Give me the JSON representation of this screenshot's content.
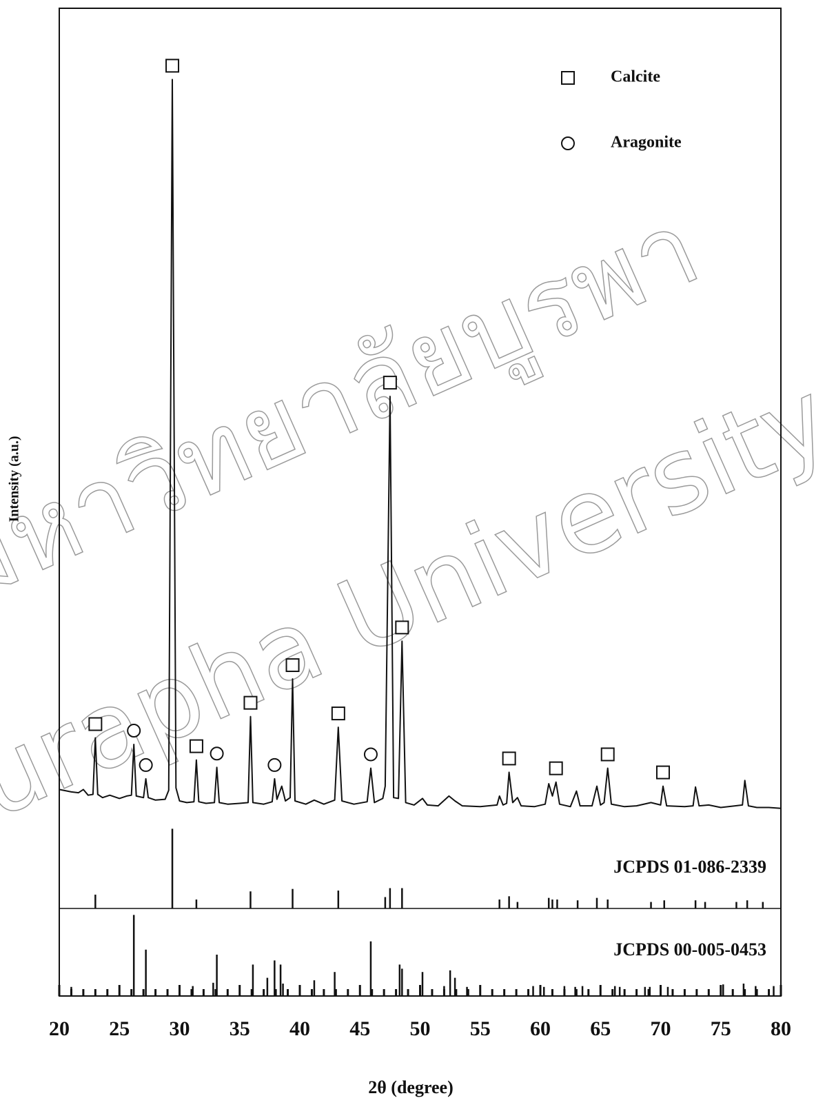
{
  "chart_data": {
    "type": "line",
    "xlabel": "2θ (degree)",
    "ylabel": "Intensity (a.u.)",
    "color": "#111111",
    "xlim": [
      20,
      80
    ],
    "xticks": [
      20,
      25,
      30,
      35,
      40,
      45,
      50,
      55,
      60,
      65,
      70,
      75,
      80
    ],
    "xminorticks": [
      21,
      22,
      23,
      24,
      26,
      27,
      28,
      29,
      31,
      32,
      33,
      34,
      36,
      37,
      38,
      39,
      41,
      42,
      43,
      44,
      46,
      47,
      48,
      49,
      51,
      52,
      53,
      54,
      56,
      57,
      58,
      59,
      61,
      62,
      63,
      64,
      66,
      67,
      68,
      69,
      71,
      72,
      73,
      74,
      76,
      77,
      78,
      79
    ],
    "ylim": [
      0,
      100
    ],
    "x": [
      20,
      21,
      21.6,
      22,
      22.4,
      22.8,
      23.0,
      23.2,
      23.6,
      24.2,
      25,
      25.6,
      26.0,
      26.2,
      26.4,
      27.0,
      27.2,
      27.4,
      28,
      28.8,
      29.1,
      29.4,
      29.7,
      30.0,
      30.6,
      31.2,
      31.4,
      31.6,
      32.2,
      32.9,
      33.1,
      33.3,
      34,
      35,
      35.7,
      35.9,
      36.1,
      37,
      37.7,
      37.9,
      38.1,
      38.5,
      38.8,
      39.2,
      39.4,
      39.6,
      40.5,
      41.2,
      42,
      42.9,
      43.2,
      43.5,
      44.5,
      45.6,
      45.9,
      46.2,
      46.9,
      47.1,
      47.5,
      47.8,
      48.2,
      48.5,
      48.8,
      49.5,
      50.2,
      50.6,
      51.5,
      52.4,
      52.9,
      53.5,
      55,
      56.4,
      56.6,
      56.9,
      57.2,
      57.4,
      57.7,
      58.1,
      58.4,
      59.5,
      60.4,
      60.7,
      61.0,
      61.3,
      61.6,
      62.5,
      63.0,
      63.3,
      64.3,
      64.7,
      65.0,
      65.3,
      65.6,
      65.9,
      67,
      68,
      69.2,
      70.0,
      70.2,
      70.5,
      72,
      72.7,
      72.9,
      73.2,
      74,
      75,
      76.2,
      76.8,
      77.0,
      77.3,
      78,
      79,
      80
    ],
    "values": [
      4.6,
      4.3,
      4.2,
      4.6,
      3.9,
      4,
      10.9,
      4,
      3.6,
      3.9,
      3.5,
      3.8,
      3.9,
      10.1,
      3.8,
      3.6,
      5.9,
      3.6,
      3.3,
      3.4,
      4.5,
      91.3,
      4.8,
      3.2,
      3.0,
      3.1,
      8.2,
      3.1,
      2.9,
      3.0,
      7.3,
      3.0,
      2.8,
      2.9,
      3.0,
      13.5,
      3.0,
      2.8,
      3.1,
      5.9,
      3.4,
      5.0,
      3.2,
      3.6,
      18.1,
      3.2,
      2.8,
      3.3,
      2.8,
      3.3,
      12.2,
      3.2,
      2.8,
      3.1,
      7.2,
      3.0,
      3.5,
      5.0,
      52.6,
      3.6,
      3.5,
      22.7,
      3.0,
      2.7,
      3.5,
      2.7,
      2.6,
      3.8,
      3.2,
      2.6,
      2.5,
      2.7,
      3.8,
      2.7,
      2.9,
      6.7,
      3.0,
      3.6,
      2.6,
      2.5,
      2.8,
      5.3,
      3.8,
      5.5,
      2.8,
      2.5,
      4.4,
      2.6,
      2.6,
      5.0,
      2.7,
      3.0,
      7.2,
      2.8,
      2.5,
      2.6,
      3.0,
      2.7,
      5.0,
      2.6,
      2.5,
      2.6,
      4.9,
      2.6,
      2.7,
      2.4,
      2.6,
      2.7,
      5.7,
      2.6,
      2.4,
      2.4,
      2.3
    ],
    "legend": [
      {
        "name": "Calcite",
        "marker": "square"
      },
      {
        "name": "Aragonite",
        "marker": "circle"
      }
    ],
    "markers": [
      {
        "marker": "square",
        "x": 23.0
      },
      {
        "marker": "square",
        "x": 29.4
      },
      {
        "marker": "square",
        "x": 31.4
      },
      {
        "marker": "square",
        "x": 35.9
      },
      {
        "marker": "square",
        "x": 39.4
      },
      {
        "marker": "square",
        "x": 43.2
      },
      {
        "marker": "square",
        "x": 47.5
      },
      {
        "marker": "square",
        "x": 48.5
      },
      {
        "marker": "square",
        "x": 57.4
      },
      {
        "marker": "square",
        "x": 61.3
      },
      {
        "marker": "square",
        "x": 65.6
      },
      {
        "marker": "square",
        "x": 70.2
      },
      {
        "marker": "circle",
        "x": 26.2
      },
      {
        "marker": "circle",
        "x": 27.2
      },
      {
        "marker": "circle",
        "x": 33.1
      },
      {
        "marker": "circle",
        "x": 37.9
      },
      {
        "marker": "circle",
        "x": 45.9
      }
    ],
    "references": [
      {
        "name": "JCPDS 01-086-2339",
        "ylim": [
          0,
          100
        ],
        "x": [
          23.0,
          29.4,
          31.4,
          35.9,
          39.4,
          43.2,
          47.1,
          47.5,
          48.5,
          56.6,
          57.4,
          58.1,
          60.7,
          61.0,
          61.4,
          63.1,
          64.7,
          65.6,
          69.2,
          70.3,
          72.9,
          73.7,
          76.3,
          77.2,
          78.5
        ],
        "values": [
          17,
          98,
          11,
          21,
          24,
          22,
          14,
          25,
          25,
          11,
          15,
          8,
          13,
          11,
          11,
          10,
          13,
          11,
          8,
          10,
          10,
          8,
          8,
          10,
          8
        ]
      },
      {
        "name": "JCPDS 00-005-0453",
        "ylim": [
          0,
          100
        ],
        "x": [
          21.0,
          26.2,
          27.2,
          31.1,
          32.8,
          33.1,
          36.1,
          37.3,
          37.9,
          38.4,
          38.6,
          41.2,
          42.9,
          45.9,
          48.3,
          48.5,
          50.2,
          52.0,
          52.5,
          52.9,
          53.9,
          59.4,
          60.3,
          62.0,
          62.9,
          63.5,
          66.2,
          66.6,
          68.7,
          69.1,
          70.6,
          75.2,
          76.9,
          77.9,
          79.4
        ],
        "values": [
          11,
          98,
          56,
          12,
          16,
          50,
          38,
          22,
          43,
          38,
          15,
          19,
          29,
          66,
          38,
          33,
          29,
          12,
          31,
          22,
          11,
          12,
          11,
          12,
          11,
          12,
          12,
          11,
          11,
          11,
          11,
          14,
          15,
          12,
          12
        ]
      }
    ],
    "watermark": [
      "มหาวิทยาลัยบูรพา",
      "Burapha University"
    ]
  }
}
